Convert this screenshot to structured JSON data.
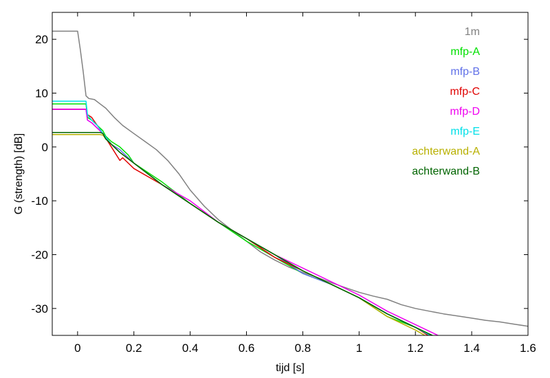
{
  "chart_data": {
    "type": "line",
    "xlabel": "tijd  [s]",
    "ylabel": "G (strength)  [dB]",
    "xlim": [
      -0.09,
      1.6
    ],
    "ylim": [
      -35,
      25
    ],
    "xticks": [
      0,
      0.2,
      0.4,
      0.6,
      0.8,
      1,
      1.2,
      1.4,
      1.6
    ],
    "xtick_labels": [
      "0",
      "0.2",
      "0.4",
      "0.6",
      "0.8",
      "1",
      "1.2",
      "1.4",
      "1.6"
    ],
    "yticks": [
      20,
      10,
      0,
      -10,
      -20,
      -30
    ],
    "ytick_labels": [
      "20",
      "10",
      "0",
      "-10",
      "-20",
      "-30"
    ],
    "grid": false,
    "legend_position": "top-right",
    "series": [
      {
        "name": "1m",
        "color": "#808080",
        "x": [
          -0.09,
          0,
          0.01,
          0.02,
          0.03,
          0.04,
          0.06,
          0.08,
          0.1,
          0.13,
          0.16,
          0.2,
          0.24,
          0.28,
          0.32,
          0.36,
          0.4,
          0.45,
          0.5,
          0.55,
          0.6,
          0.65,
          0.7,
          0.75,
          0.8,
          0.85,
          0.9,
          0.95,
          1.0,
          1.05,
          1.1,
          1.15,
          1.2,
          1.25,
          1.3,
          1.35,
          1.4,
          1.45,
          1.5,
          1.55,
          1.6
        ],
        "y": [
          21.5,
          21.5,
          18,
          14,
          9.5,
          9,
          8.8,
          8,
          7.2,
          5.5,
          4,
          2.5,
          1,
          -0.5,
          -2.5,
          -5,
          -8,
          -11,
          -13.5,
          -15.5,
          -17.5,
          -19.5,
          -21,
          -22.3,
          -23.3,
          -24.2,
          -25.2,
          -26.1,
          -27,
          -27.7,
          -28.3,
          -29.3,
          -30,
          -30.5,
          -31,
          -31.4,
          -31.8,
          -32.2,
          -32.5,
          -32.9,
          -33.3
        ]
      },
      {
        "name": "mfp-A",
        "color": "#00e000",
        "x": [
          -0.09,
          0.03,
          0.035,
          0.05,
          0.07,
          0.08,
          0.09,
          0.1,
          0.12,
          0.15,
          0.18,
          0.2,
          0.3,
          0.4,
          0.5,
          0.6,
          0.7,
          0.8,
          0.9,
          1.0,
          1.1,
          1.2,
          1.28
        ],
        "y": [
          8,
          8,
          5.5,
          5,
          4,
          3.5,
          3,
          2,
          1,
          0,
          -1.5,
          -3,
          -6.5,
          -10.5,
          -14,
          -17.5,
          -20.5,
          -23.5,
          -25.5,
          -28,
          -31.5,
          -33.5,
          -35.5
        ]
      },
      {
        "name": "mfp-B",
        "color": "#6070e8",
        "x": [
          -0.09,
          0.03,
          0.035,
          0.05,
          0.07,
          0.08,
          0.09,
          0.1,
          0.12,
          0.15,
          0.2,
          0.3,
          0.4,
          0.5,
          0.6,
          0.7,
          0.8,
          0.9,
          1.0,
          1.1,
          1.2,
          1.27
        ],
        "y": [
          7,
          7,
          5,
          4.5,
          3.5,
          3,
          2.5,
          1.5,
          0.5,
          -0.5,
          -3,
          -7,
          -10.5,
          -14,
          -17,
          -20,
          -23.5,
          -25.5,
          -28,
          -31,
          -33.5,
          -35.5
        ]
      },
      {
        "name": "mfp-C",
        "color": "#e00000",
        "x": [
          -0.09,
          0.03,
          0.035,
          0.05,
          0.07,
          0.09,
          0.12,
          0.15,
          0.16,
          0.2,
          0.3,
          0.4,
          0.5,
          0.6,
          0.7,
          0.8,
          0.9,
          1.0,
          1.1,
          1.2,
          1.26
        ],
        "y": [
          7,
          7,
          6,
          5.5,
          4,
          2.5,
          0,
          -2.5,
          -2,
          -4,
          -7,
          -10.5,
          -14,
          -17,
          -20.5,
          -23,
          -25.5,
          -28,
          -31,
          -33.5,
          -35.5
        ]
      },
      {
        "name": "mfp-D",
        "color": "#f000f0",
        "x": [
          -0.09,
          0.03,
          0.035,
          0.05,
          0.07,
          0.09,
          0.12,
          0.15,
          0.2,
          0.3,
          0.4,
          0.5,
          0.6,
          0.7,
          0.8,
          0.9,
          1.0,
          1.1,
          1.2,
          1.3
        ],
        "y": [
          7,
          7,
          5,
          4.5,
          3.5,
          2.5,
          0.5,
          -1,
          -3,
          -7,
          -10,
          -14,
          -17,
          -20,
          -22.5,
          -25,
          -27.5,
          -30.5,
          -33,
          -35.5
        ]
      },
      {
        "name": "mfp-E",
        "color": "#00e0e8",
        "x": [
          -0.09,
          0.03,
          0.035,
          0.05,
          0.07,
          0.09,
          0.12,
          0.15,
          0.2,
          0.3,
          0.4,
          0.5,
          0.6,
          0.7,
          0.8,
          0.9,
          1.0,
          1.1,
          1.2,
          1.27
        ],
        "y": [
          8.5,
          8.5,
          6,
          5,
          4,
          2.5,
          0.5,
          -1,
          -3,
          -7,
          -10.5,
          -14,
          -17,
          -20,
          -23,
          -25.5,
          -28,
          -31,
          -33.5,
          -35.5
        ]
      },
      {
        "name": "achterwand-A",
        "color": "#b8b000",
        "x": [
          -0.09,
          0.08,
          0.09,
          0.1,
          0.12,
          0.15,
          0.2,
          0.3,
          0.4,
          0.5,
          0.6,
          0.7,
          0.8,
          0.9,
          1.0,
          1.1,
          1.2,
          1.25
        ],
        "y": [
          2.3,
          2.3,
          2.2,
          1.5,
          0.5,
          -1,
          -3,
          -7,
          -10.5,
          -14,
          -17,
          -20,
          -23,
          -25.5,
          -28,
          -31.5,
          -34,
          -35.5
        ]
      },
      {
        "name": "achterwand-B",
        "color": "#006400",
        "x": [
          -0.09,
          0.08,
          0.09,
          0.1,
          0.12,
          0.15,
          0.2,
          0.3,
          0.4,
          0.5,
          0.6,
          0.7,
          0.8,
          0.9,
          1.0,
          1.1,
          1.2,
          1.28
        ],
        "y": [
          2.7,
          2.7,
          2.5,
          1.5,
          0.5,
          -1,
          -3,
          -7,
          -10.5,
          -14,
          -17,
          -20,
          -23,
          -25.5,
          -28,
          -31,
          -33.5,
          -35.5
        ]
      }
    ]
  }
}
